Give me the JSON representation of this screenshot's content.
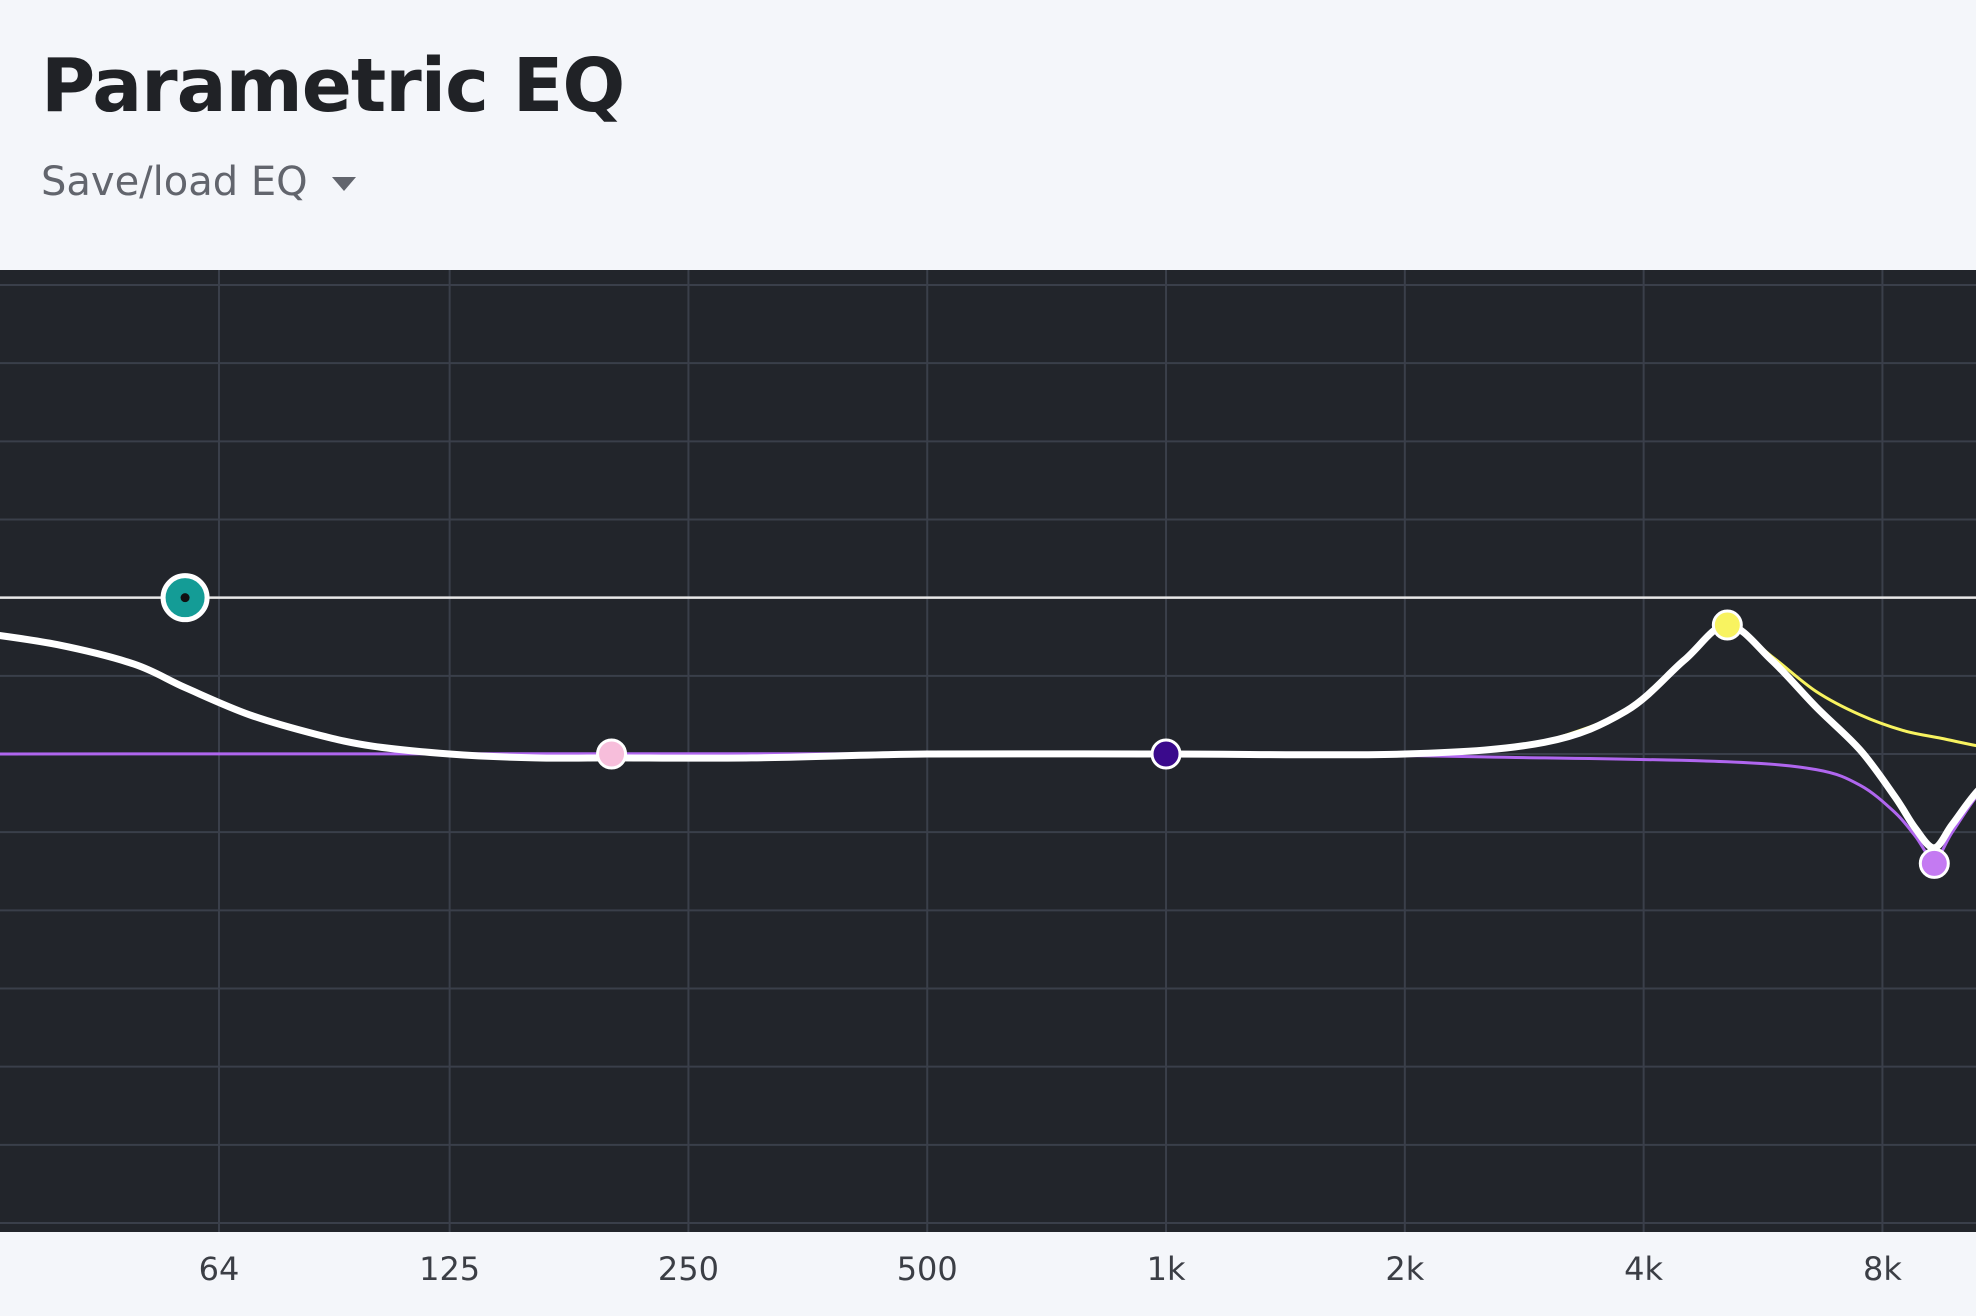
{
  "header": {
    "title": "Parametric EQ",
    "save_load_label": "Save/load EQ"
  },
  "chart_data": {
    "type": "line",
    "x_scale": "log",
    "xlim": [
      32,
      12500
    ],
    "ylim": [
      -12,
      12
    ],
    "x_ticks": [
      {
        "value": 64,
        "label": "64"
      },
      {
        "value": 125,
        "label": "125"
      },
      {
        "value": 250,
        "label": "250"
      },
      {
        "value": 500,
        "label": "500"
      },
      {
        "value": 1000,
        "label": "1k"
      },
      {
        "value": 2000,
        "label": "2k"
      },
      {
        "value": 4000,
        "label": "4k"
      },
      {
        "value": 8000,
        "label": "8k"
      }
    ],
    "y_gridlines": [
      12,
      10,
      8,
      6,
      4,
      2,
      0,
      -2,
      -4,
      -6,
      -8,
      -10,
      -12
    ],
    "reference_line": 4,
    "grid": true,
    "colors": {
      "background": "#22252b",
      "grid": "#3a3f4a",
      "reference": "#e8e8e8",
      "composite": "#ffffff"
    },
    "bands": [
      {
        "type": "low-shelf",
        "freq": 58,
        "gain": 4,
        "q": 0.7,
        "color": "#149c96",
        "selected": true
      },
      {
        "type": "peak",
        "freq": 200,
        "gain": 0,
        "q": 1.0,
        "color": "#f7bedb",
        "selected": false
      },
      {
        "type": "peak",
        "freq": 1000,
        "gain": 0,
        "q": 1.0,
        "color": "#3a0a8c",
        "selected": false
      },
      {
        "type": "peak",
        "freq": 5100,
        "gain": 3.3,
        "q": 2.0,
        "color": "#f8f360",
        "selected": false
      },
      {
        "type": "peak",
        "freq": 9300,
        "gain": -2.8,
        "q": 3.0,
        "color": "#c47af2",
        "selected": false
      }
    ],
    "series": [
      {
        "kind": "composite",
        "color": "#ffffff",
        "x": [
          32,
          40,
          50,
          58,
          70,
          85,
          100,
          125,
          160,
          200,
          300,
          500,
          1000,
          2000,
          3000,
          3800,
          4500,
          5100,
          5800,
          6600,
          7500,
          8300,
          8800,
          9300,
          9800,
          10600,
          11500,
          12500
        ],
        "y": [
          3.1,
          2.8,
          2.3,
          1.7,
          1.0,
          0.5,
          0.2,
          0.0,
          -0.1,
          -0.1,
          -0.1,
          0.0,
          0.0,
          0.0,
          0.3,
          1.1,
          2.4,
          3.3,
          2.4,
          1.2,
          0.1,
          -1.1,
          -1.9,
          -2.4,
          -1.8,
          -0.9,
          -0.4,
          -0.2
        ]
      },
      {
        "kind": "band-response",
        "band": 4,
        "color": "#f8f360",
        "x": [
          3000,
          3800,
          4500,
          5100,
          5800,
          6600,
          7500,
          8500,
          9500,
          10600,
          11500,
          12500
        ],
        "y": [
          0.3,
          1.1,
          2.4,
          3.3,
          2.5,
          1.6,
          1.0,
          0.6,
          0.4,
          0.2,
          0.1,
          0.0
        ]
      },
      {
        "kind": "band-response",
        "band": 5,
        "color": "#b066ef",
        "x": [
          32,
          1000,
          3000,
          5100,
          6600,
          7500,
          8300,
          8800,
          9300,
          9800,
          10600,
          11500,
          12500
        ],
        "y": [
          0.0,
          0.0,
          -0.1,
          -0.2,
          -0.4,
          -0.8,
          -1.5,
          -2.1,
          -2.7,
          -2.0,
          -1.0,
          -0.4,
          -0.2
        ]
      }
    ]
  }
}
